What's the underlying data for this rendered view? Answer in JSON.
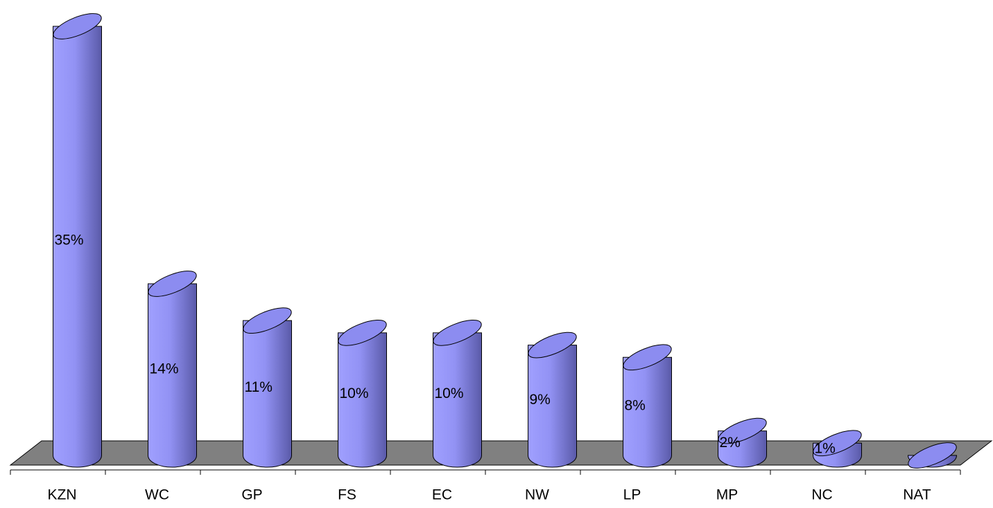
{
  "chart_data": {
    "type": "cylinder_bar",
    "categories": [
      "KZN",
      "WC",
      "GP",
      "FS",
      "EC",
      "NW",
      "LP",
      "MP",
      "NC",
      "NAT"
    ],
    "values": [
      35,
      14,
      11,
      10,
      10,
      9,
      8,
      2,
      1,
      0
    ],
    "value_labels": [
      "35%",
      "14%",
      "11%",
      "10%",
      "10%",
      "9%",
      "8%",
      "2%",
      "1%",
      null
    ],
    "color": "#8c8cf0",
    "floor_color": "#808080"
  }
}
